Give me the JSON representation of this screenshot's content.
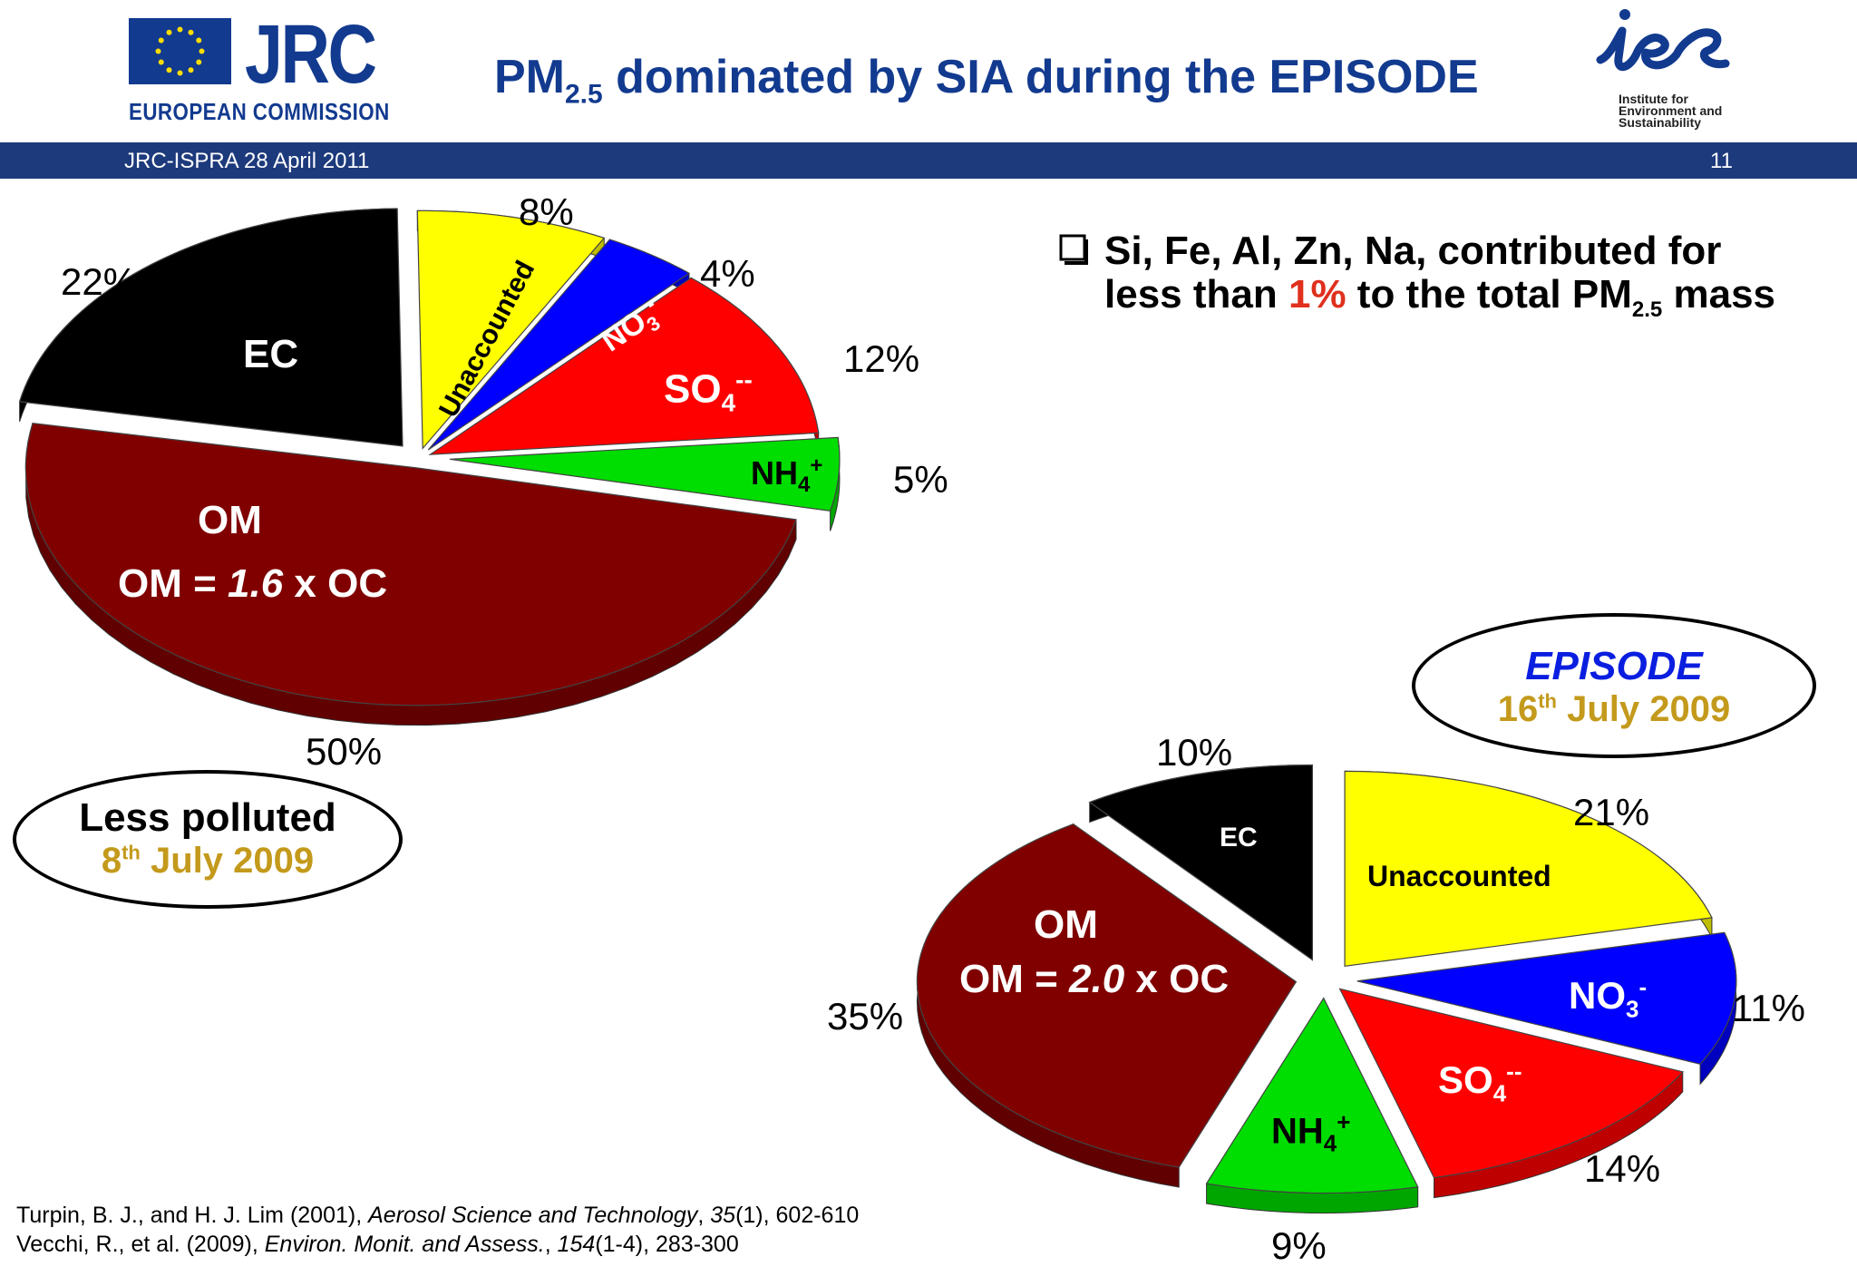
{
  "header": {
    "title_main": "PM",
    "title_sub": "2.5",
    "title_rest": " dominated by SIA during the EPISODE",
    "jrc_logo_text": "JRC",
    "jrc_org": "EUROPEAN COMMISSION",
    "ies_logo_text": "ies",
    "ies_caption_1": "Institute for",
    "ies_caption_2": "Environment and",
    "ies_caption_3": "Sustainability",
    "date_line": "JRC-ISPRA 28 April 2011",
    "page_number": "11",
    "colors": {
      "bar": "#1d3a7c",
      "title": "#123a8f",
      "highlight": "#e0301e",
      "date_gold": "#c49a1c"
    }
  },
  "note": {
    "bullet_icon": "checkbox-icon",
    "line1": "Si, Fe, Al, Zn, Na, contributed for",
    "line2_a": "less than ",
    "line2_highlight": "1%",
    "line2_b": " to the total PM",
    "line2_sub": "2.5",
    "line2_c": " mass"
  },
  "oval_left": {
    "line1": "Less polluted",
    "day": "8",
    "sup": "th",
    "rest": " July 2009"
  },
  "oval_right": {
    "line1": "EPISODE",
    "day": "16",
    "sup": "th",
    "rest": " July 2009"
  },
  "references": [
    {
      "a": "Turpin, B. J., and H. J. Lim (2001),  ",
      "journal": "Aerosol Science and Technology",
      "b": ", ",
      "vol": "35",
      "c": "(1), 602-610"
    },
    {
      "a": "Vecchi, R., et al. (2009),  ",
      "journal": "Environ. Monit. and Assess.",
      "b": ", ",
      "vol": "154",
      "c": "(1-4), 283-300"
    }
  ],
  "chart_data": [
    {
      "type": "pie",
      "title": "Less polluted 8th July 2009",
      "slices": [
        {
          "label": "EC",
          "value": 22,
          "pct_label": "22%",
          "color": "#000000"
        },
        {
          "label": "Unaccounted",
          "value": 8,
          "pct_label": "8%",
          "color": "#ffff00"
        },
        {
          "label": "NO3-",
          "value": 4,
          "pct_label": "4%",
          "color": "#0000ff"
        },
        {
          "label": "SO4--",
          "value": 12,
          "pct_label": "12%",
          "color": "#ff0000"
        },
        {
          "label": "NH4+",
          "value": 5,
          "pct_label": "5%",
          "color": "#00dd00"
        },
        {
          "label": "OM",
          "value": 50,
          "pct_label": "50%",
          "color": "#800000"
        }
      ],
      "om_formula": {
        "prefix": "OM = ",
        "factor": "1.6",
        "suffix": " x OC"
      }
    },
    {
      "type": "pie",
      "title": "EPISODE 16th July 2009",
      "slices": [
        {
          "label": "EC",
          "value": 10,
          "pct_label": "10%",
          "color": "#000000"
        },
        {
          "label": "Unaccounted",
          "value": 21,
          "pct_label": "21%",
          "color": "#ffff00"
        },
        {
          "label": "NO3-",
          "value": 11,
          "pct_label": "11%",
          "color": "#0000ff"
        },
        {
          "label": "SO4--",
          "value": 14,
          "pct_label": "14%",
          "color": "#ff0000"
        },
        {
          "label": "NH4+",
          "value": 9,
          "pct_label": "9%",
          "color": "#00dd00"
        },
        {
          "label": "OM",
          "value": 35,
          "pct_label": "35%",
          "color": "#800000"
        }
      ],
      "om_formula": {
        "prefix": "OM = ",
        "factor": "2.0",
        "suffix": " x OC"
      }
    }
  ]
}
